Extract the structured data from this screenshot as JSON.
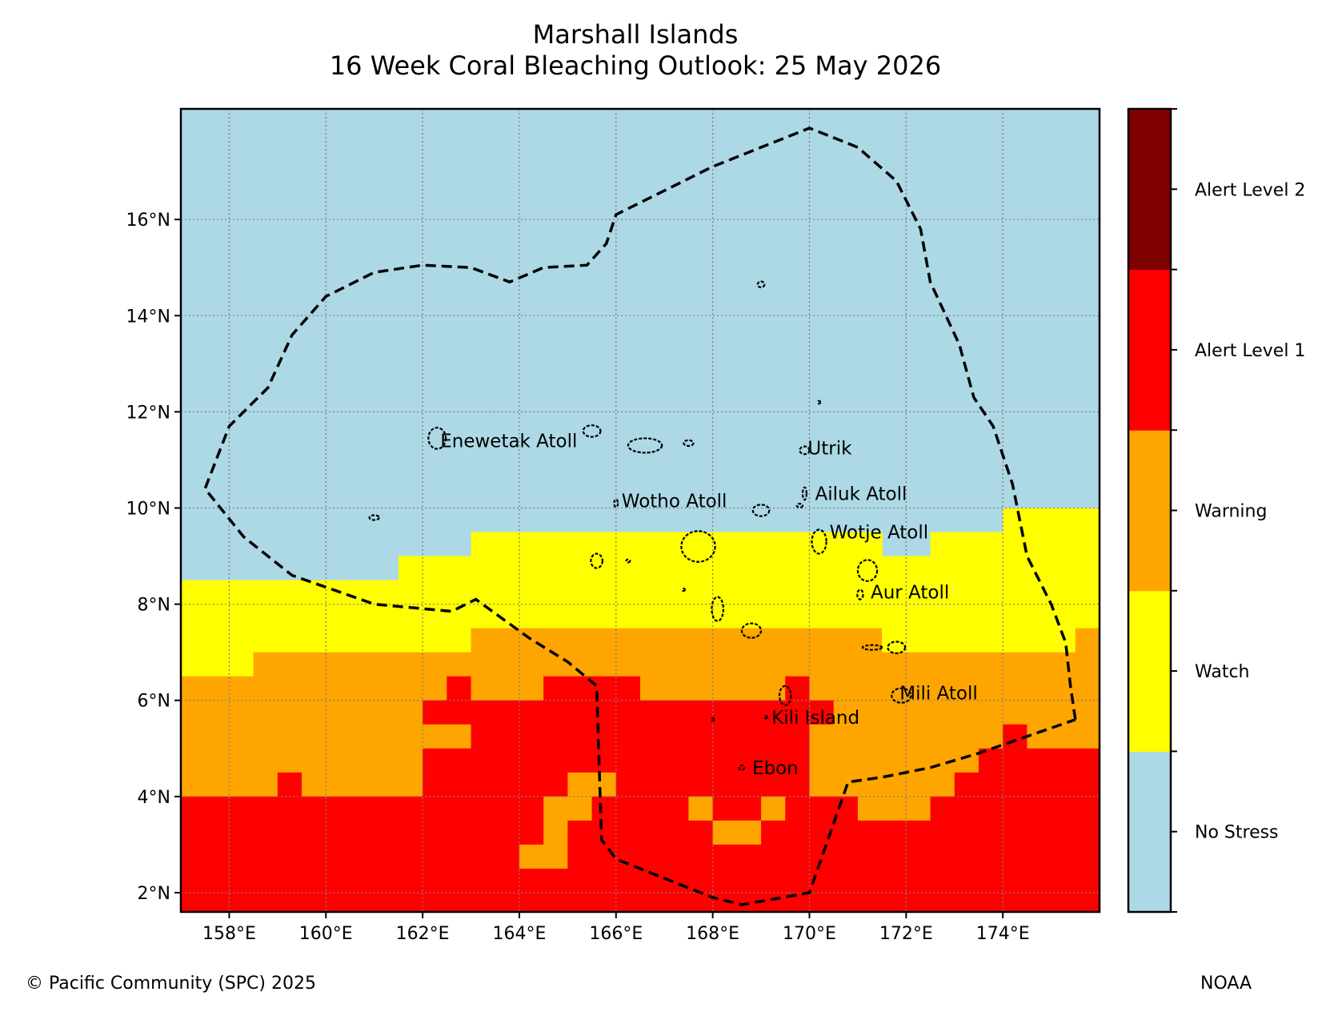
{
  "title": {
    "line1": "Marshall Islands",
    "line2": "16 Week Coral Bleaching Outlook: 25 May 2026"
  },
  "map": {
    "lon_range": [
      157,
      176
    ],
    "lat_range": [
      1.6,
      18.3
    ],
    "lon_ticks": [
      {
        "value": 158,
        "label": "158°E"
      },
      {
        "value": 160,
        "label": "160°E"
      },
      {
        "value": 162,
        "label": "162°E"
      },
      {
        "value": 164,
        "label": "164°E"
      },
      {
        "value": 166,
        "label": "166°E"
      },
      {
        "value": 168,
        "label": "168°E"
      },
      {
        "value": 170,
        "label": "170°E"
      },
      {
        "value": 172,
        "label": "172°E"
      },
      {
        "value": 174,
        "label": "174°E"
      }
    ],
    "lat_ticks": [
      {
        "value": 2,
        "label": "2°N"
      },
      {
        "value": 4,
        "label": "4°N"
      },
      {
        "value": 6,
        "label": "6°N"
      },
      {
        "value": 8,
        "label": "8°N"
      },
      {
        "value": 10,
        "label": "10°N"
      },
      {
        "value": 12,
        "label": "12°N"
      },
      {
        "value": 14,
        "label": "14°N"
      },
      {
        "value": 16,
        "label": "16°N"
      }
    ],
    "grid": true,
    "colors": {
      "0": "#add8e6",
      "1": "#ffff00",
      "2": "#ffa500",
      "3": "#ff0000",
      "4": "#800000"
    },
    "stress_grid": {
      "lon_start": 157,
      "cell_size": 0.5,
      "default_level": 0,
      "rows": [
        {
          "lat_top": 10.0,
          "lat_bottom": 9.5,
          "spans": [
            [
              174.0,
              176.0,
              1
            ]
          ]
        },
        {
          "lat_top": 9.5,
          "lat_bottom": 9.0,
          "spans": [
            [
              163.0,
              171.5,
              1
            ],
            [
              171.5,
              172.5,
              0
            ],
            [
              172.5,
              176.0,
              1
            ]
          ]
        },
        {
          "lat_top": 9.0,
          "lat_bottom": 8.5,
          "spans": [
            [
              161.5,
              176.0,
              1
            ]
          ]
        },
        {
          "lat_top": 8.5,
          "lat_bottom": 7.5,
          "spans": [
            [
              157.0,
              176.0,
              1
            ]
          ]
        },
        {
          "lat_top": 7.5,
          "lat_bottom": 7.0,
          "spans": [
            [
              157.0,
              163.0,
              1
            ],
            [
              163.0,
              171.5,
              2
            ],
            [
              171.5,
              175.5,
              1
            ],
            [
              175.5,
              176.0,
              2
            ]
          ]
        },
        {
          "lat_top": 7.0,
          "lat_bottom": 6.5,
          "spans": [
            [
              157.0,
              158.5,
              1
            ],
            [
              158.5,
              176.0,
              2
            ]
          ]
        },
        {
          "lat_top": 6.5,
          "lat_bottom": 6.0,
          "spans": [
            [
              157.0,
              162.5,
              2
            ],
            [
              162.5,
              163.0,
              3
            ],
            [
              163.0,
              164.5,
              2
            ],
            [
              164.5,
              166.5,
              3
            ],
            [
              166.5,
              169.5,
              2
            ],
            [
              169.5,
              170.0,
              3
            ],
            [
              170.0,
              176.0,
              2
            ]
          ]
        },
        {
          "lat_top": 6.0,
          "lat_bottom": 5.5,
          "spans": [
            [
              157.0,
              162.0,
              2
            ],
            [
              162.0,
              170.0,
              3
            ],
            [
              170.0,
              170.5,
              3
            ],
            [
              170.5,
              176.0,
              2
            ]
          ]
        },
        {
          "lat_top": 5.5,
          "lat_bottom": 5.0,
          "spans": [
            [
              157.0,
              162.0,
              2
            ],
            [
              162.0,
              163.0,
              2
            ],
            [
              163.0,
              170.0,
              3
            ],
            [
              170.0,
              174.0,
              2
            ],
            [
              174.0,
              174.5,
              3
            ],
            [
              174.5,
              176.0,
              2
            ]
          ]
        },
        {
          "lat_top": 5.0,
          "lat_bottom": 4.5,
          "spans": [
            [
              157.0,
              162.0,
              2
            ],
            [
              162.0,
              170.0,
              3
            ],
            [
              170.0,
              173.5,
              2
            ],
            [
              173.5,
              176.0,
              3
            ]
          ]
        },
        {
          "lat_top": 4.5,
          "lat_bottom": 4.0,
          "spans": [
            [
              157.0,
              159.0,
              2
            ],
            [
              159.0,
              159.5,
              3
            ],
            [
              159.5,
              162.0,
              2
            ],
            [
              162.0,
              165.0,
              3
            ],
            [
              165.0,
              166.0,
              2
            ],
            [
              166.0,
              170.0,
              3
            ],
            [
              170.0,
              173.0,
              2
            ],
            [
              173.0,
              176.0,
              3
            ]
          ]
        },
        {
          "lat_top": 4.0,
          "lat_bottom": 3.5,
          "spans": [
            [
              157.0,
              164.5,
              3
            ],
            [
              164.5,
              165.5,
              2
            ],
            [
              165.5,
              167.5,
              3
            ],
            [
              167.5,
              168.0,
              2
            ],
            [
              168.0,
              169.0,
              3
            ],
            [
              169.0,
              169.5,
              2
            ],
            [
              169.5,
              171.0,
              3
            ],
            [
              171.0,
              172.5,
              2
            ],
            [
              172.5,
              176.0,
              3
            ]
          ]
        },
        {
          "lat_top": 3.5,
          "lat_bottom": 3.0,
          "spans": [
            [
              157.0,
              164.5,
              3
            ],
            [
              164.5,
              165.0,
              2
            ],
            [
              165.0,
              168.0,
              3
            ],
            [
              168.0,
              169.0,
              2
            ],
            [
              169.0,
              176.0,
              3
            ]
          ]
        },
        {
          "lat_top": 3.0,
          "lat_bottom": 2.5,
          "spans": [
            [
              157.0,
              164.0,
              3
            ],
            [
              164.0,
              165.0,
              2
            ],
            [
              165.0,
              176.0,
              3
            ]
          ]
        },
        {
          "lat_top": 2.5,
          "lat_bottom": 1.6,
          "spans": [
            [
              157.0,
              176.0,
              3
            ]
          ]
        }
      ]
    },
    "eez_boundary": [
      [
        175.5,
        5.6
      ],
      [
        175.4,
        6.3
      ],
      [
        175.3,
        7.2
      ],
      [
        175.0,
        8.0
      ],
      [
        174.5,
        9.0
      ],
      [
        174.2,
        10.5
      ],
      [
        173.8,
        11.7
      ],
      [
        173.4,
        12.3
      ],
      [
        173.1,
        13.4
      ],
      [
        172.5,
        14.7
      ],
      [
        172.3,
        15.8
      ],
      [
        171.8,
        16.8
      ],
      [
        171.0,
        17.5
      ],
      [
        170.0,
        17.9
      ],
      [
        169.5,
        17.7
      ],
      [
        168.0,
        17.1
      ],
      [
        166.0,
        16.1
      ],
      [
        165.8,
        15.5
      ],
      [
        165.4,
        15.05
      ],
      [
        164.5,
        15.0
      ],
      [
        163.8,
        14.7
      ],
      [
        163.0,
        15.0
      ],
      [
        162.0,
        15.05
      ],
      [
        161.0,
        14.9
      ],
      [
        160.0,
        14.4
      ],
      [
        159.3,
        13.6
      ],
      [
        158.8,
        12.5
      ],
      [
        158.0,
        11.7
      ],
      [
        157.5,
        10.4
      ],
      [
        158.3,
        9.4
      ],
      [
        159.3,
        8.6
      ],
      [
        161.0,
        8.0
      ],
      [
        162.6,
        7.85
      ],
      [
        163.1,
        8.1
      ],
      [
        164.2,
        7.3
      ],
      [
        165.0,
        6.8
      ],
      [
        165.6,
        6.3
      ],
      [
        165.7,
        3.1
      ],
      [
        166.0,
        2.7
      ],
      [
        167.0,
        2.3
      ],
      [
        168.0,
        1.9
      ],
      [
        168.6,
        1.75
      ],
      [
        170.0,
        2.0
      ],
      [
        170.8,
        4.3
      ],
      [
        171.5,
        4.4
      ],
      [
        172.5,
        4.6
      ],
      [
        173.5,
        4.9
      ],
      [
        174.5,
        5.25
      ],
      [
        175.5,
        5.6
      ]
    ],
    "atolls": [
      {
        "lon": 162.3,
        "lat": 11.45,
        "rx": 0.18,
        "ry": 0.22
      },
      {
        "lon": 165.5,
        "lat": 11.6,
        "rx": 0.18,
        "ry": 0.12
      },
      {
        "lon": 166.6,
        "lat": 11.3,
        "rx": 0.35,
        "ry": 0.15
      },
      {
        "lon": 167.5,
        "lat": 11.35,
        "rx": 0.1,
        "ry": 0.06
      },
      {
        "lon": 169.0,
        "lat": 14.65,
        "rx": 0.07,
        "ry": 0.06
      },
      {
        "lon": 169.9,
        "lat": 11.2,
        "rx": 0.1,
        "ry": 0.08
      },
      {
        "lon": 170.2,
        "lat": 12.2,
        "rx": 0.02,
        "ry": 0.03
      },
      {
        "lon": 166.0,
        "lat": 10.1,
        "rx": 0.04,
        "ry": 0.08
      },
      {
        "lon": 161.0,
        "lat": 9.8,
        "rx": 0.1,
        "ry": 0.05
      },
      {
        "lon": 169.0,
        "lat": 9.95,
        "rx": 0.17,
        "ry": 0.12
      },
      {
        "lon": 169.8,
        "lat": 10.05,
        "rx": 0.06,
        "ry": 0.04
      },
      {
        "lon": 169.9,
        "lat": 10.3,
        "rx": 0.04,
        "ry": 0.13
      },
      {
        "lon": 170.2,
        "lat": 9.3,
        "rx": 0.15,
        "ry": 0.25
      },
      {
        "lon": 167.7,
        "lat": 9.2,
        "rx": 0.35,
        "ry": 0.32
      },
      {
        "lon": 165.6,
        "lat": 8.9,
        "rx": 0.12,
        "ry": 0.15
      },
      {
        "lon": 166.25,
        "lat": 8.9,
        "rx": 0.04,
        "ry": 0.03
      },
      {
        "lon": 167.4,
        "lat": 8.3,
        "rx": 0.02,
        "ry": 0.02
      },
      {
        "lon": 168.1,
        "lat": 7.9,
        "rx": 0.12,
        "ry": 0.25
      },
      {
        "lon": 168.8,
        "lat": 7.45,
        "rx": 0.2,
        "ry": 0.15
      },
      {
        "lon": 171.2,
        "lat": 8.7,
        "rx": 0.2,
        "ry": 0.22
      },
      {
        "lon": 171.05,
        "lat": 8.2,
        "rx": 0.06,
        "ry": 0.1
      },
      {
        "lon": 171.3,
        "lat": 7.1,
        "rx": 0.2,
        "ry": 0.05
      },
      {
        "lon": 171.8,
        "lat": 7.1,
        "rx": 0.18,
        "ry": 0.12
      },
      {
        "lon": 171.9,
        "lat": 6.1,
        "rx": 0.2,
        "ry": 0.15
      },
      {
        "lon": 169.5,
        "lat": 6.1,
        "rx": 0.12,
        "ry": 0.2
      },
      {
        "lon": 169.1,
        "lat": 5.65,
        "rx": 0.02,
        "ry": 0.02
      },
      {
        "lon": 168.0,
        "lat": 5.6,
        "rx": 0.02,
        "ry": 0.03
      },
      {
        "lon": 168.6,
        "lat": 4.6,
        "rx": 0.05,
        "ry": 0.05
      }
    ],
    "places": [
      {
        "name": "Enewetak Atoll",
        "lon": 162.3,
        "lat": 11.4
      },
      {
        "name": "Utrik",
        "lon": 169.9,
        "lat": 11.25
      },
      {
        "name": "Wotho Atoll",
        "lon": 166.05,
        "lat": 10.15
      },
      {
        "name": "Ailuk Atoll",
        "lon": 170.05,
        "lat": 10.3
      },
      {
        "name": "Wotje Atoll",
        "lon": 170.35,
        "lat": 9.5
      },
      {
        "name": "Aur Atoll",
        "lon": 171.2,
        "lat": 8.25
      },
      {
        "name": "Mili Atoll",
        "lon": 171.8,
        "lat": 6.15
      },
      {
        "name": "Kili Island",
        "lon": 169.15,
        "lat": 5.65
      },
      {
        "name": "Ebon",
        "lon": 168.75,
        "lat": 4.6
      }
    ]
  },
  "colorbar": {
    "levels": [
      {
        "label": "No Stress",
        "color": "#add8e6"
      },
      {
        "label": "Watch",
        "color": "#ffff00"
      },
      {
        "label": "Warning",
        "color": "#ffa500"
      },
      {
        "label": "Alert Level 1",
        "color": "#ff0000"
      },
      {
        "label": "Alert Level 2",
        "color": "#800000"
      }
    ]
  },
  "footer": {
    "left": "© Pacific Community (SPC) 2025",
    "right": "NOAA"
  }
}
